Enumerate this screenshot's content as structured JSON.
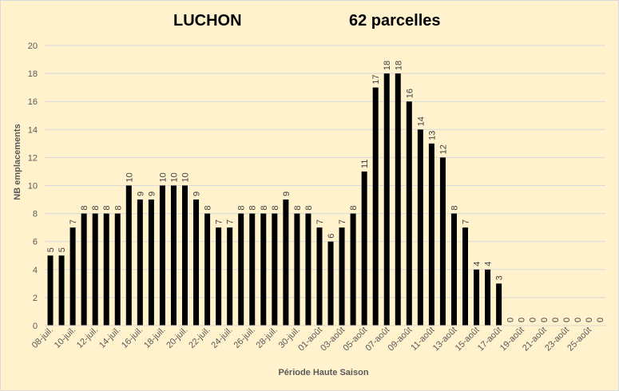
{
  "chart_data": {
    "type": "bar",
    "title_left": "LUCHON",
    "title_right": "62 parcelles",
    "xlabel": "Période Haute Saison",
    "ylabel": "NB emplacements",
    "ylim": [
      0,
      20
    ],
    "yticks": [
      0,
      2,
      4,
      6,
      8,
      10,
      12,
      14,
      16,
      18,
      20
    ],
    "grid": true,
    "legend": "none",
    "bar_color": "#000000",
    "grid_color": "#d9d9d9",
    "background_color": "#fff2cc",
    "categories": [
      "08-juil.",
      "09-juil.",
      "10-juil.",
      "11-juil.",
      "12-juil.",
      "13-juil.",
      "14-juil.",
      "15-juil.",
      "16-juil.",
      "17-juil.",
      "18-juil.",
      "19-juil.",
      "20-juil.",
      "21-juil.",
      "22-juil.",
      "23-juil.",
      "24-juil.",
      "25-juil.",
      "26-juil.",
      "27-juil.",
      "28-juil.",
      "29-juil.",
      "30-juil.",
      "31-juil.",
      "01-août",
      "02-août",
      "03-août",
      "04-août",
      "05-août",
      "06-août",
      "07-août",
      "08-août",
      "09-août",
      "10-août",
      "11-août",
      "12-août",
      "13-août",
      "14-août",
      "15-août",
      "16-août",
      "17-août",
      "18-août",
      "19-août",
      "20-août",
      "21-août",
      "22-août",
      "23-août",
      "24-août",
      "25-août",
      "26-août"
    ],
    "visible_tick_labels": [
      "08-juil.",
      "10-juil.",
      "12-juil.",
      "14-juil.",
      "16-juil.",
      "18-juil.",
      "20-juil.",
      "22-juil.",
      "24-juil.",
      "26-juil.",
      "28-juil.",
      "30-juil.",
      "01-août",
      "03-août",
      "05-août",
      "07-août",
      "09-août",
      "11-août",
      "13-août",
      "15-août",
      "17-août",
      "19-août",
      "21-août",
      "23-août",
      "25-août"
    ],
    "values": [
      5,
      5,
      7,
      8,
      8,
      8,
      8,
      10,
      9,
      9,
      10,
      10,
      10,
      9,
      8,
      7,
      7,
      8,
      8,
      8,
      8,
      9,
      8,
      8,
      7,
      6,
      7,
      8,
      11,
      17,
      18,
      18,
      16,
      14,
      13,
      12,
      8,
      7,
      4,
      4,
      3,
      0,
      0,
      0,
      0,
      0,
      0,
      0,
      0,
      0
    ]
  }
}
